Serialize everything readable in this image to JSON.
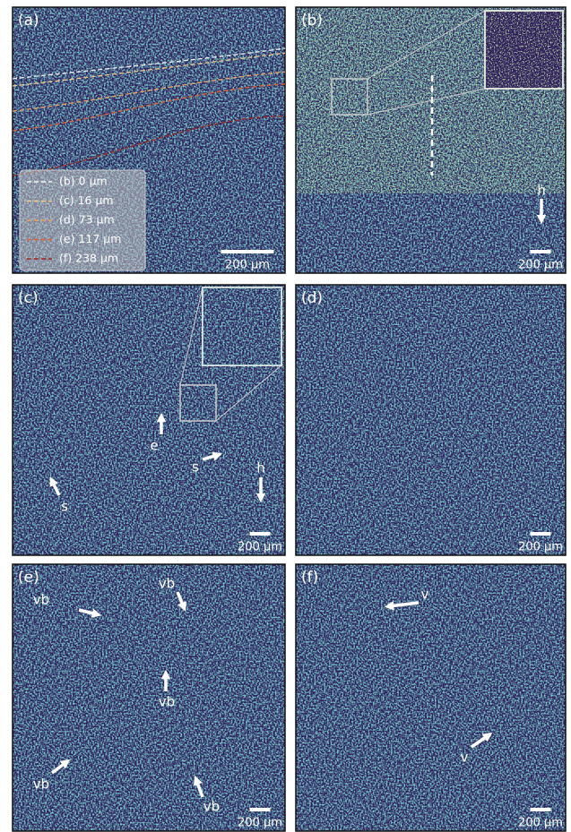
{
  "panels": [
    {
      "label": "(a)",
      "scale_bar": "200 µm",
      "legend": [
        {
          "text": "(b) 0 µm",
          "color": "#f2f2f2"
        },
        {
          "text": "(c) 16 µm",
          "color": "#f6c98a"
        },
        {
          "text": "(d) 73 µm",
          "color": "#f0a060"
        },
        {
          "text": "(e) 117 µm",
          "color": "#e06030"
        },
        {
          "text": "(f) 238 µm",
          "color": "#a02818"
        }
      ]
    },
    {
      "label": "(b)",
      "scale_bar": "200 µm",
      "annotations": [
        "h"
      ]
    },
    {
      "label": "(c)",
      "scale_bar": "200 µm",
      "annotations": [
        "e",
        "s",
        "s",
        "h"
      ]
    },
    {
      "label": "(d)",
      "scale_bar": "200 µm"
    },
    {
      "label": "(e)",
      "scale_bar": "200 µm",
      "annotations": [
        "vb",
        "vb",
        "vb",
        "vb",
        "vb"
      ]
    },
    {
      "label": "(f)",
      "scale_bar": "200 µm",
      "annotations": [
        "v",
        "v"
      ]
    }
  ]
}
